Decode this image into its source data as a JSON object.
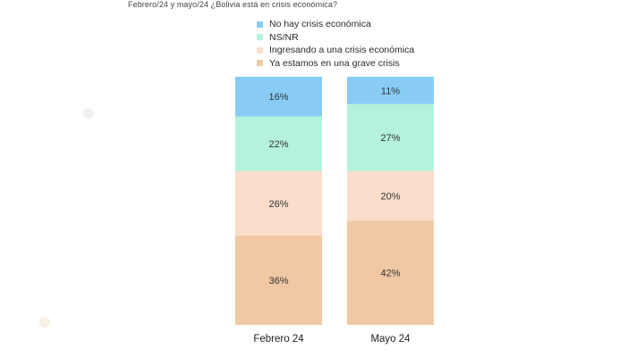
{
  "title": "Febrero/24 y mayo/24 ¿Bolivia está en crisis económica?",
  "chart_data": {
    "type": "bar",
    "stacked": true,
    "percent": true,
    "categories": [
      "Febrero 24",
      "Mayo 24"
    ],
    "series": [
      {
        "name": "Ya estamos en una grave crisis",
        "color": "#f0c8a4",
        "values": [
          36,
          42
        ],
        "labels": [
          "36%",
          "42%"
        ]
      },
      {
        "name": "Ingresando a una crisis económica",
        "color": "#f8decb",
        "values": [
          26,
          20
        ],
        "labels": [
          "26%",
          "20%"
        ]
      },
      {
        "name": "NS/NR",
        "color": "#b4f2dc",
        "values": [
          22,
          27
        ],
        "labels": [
          "22%",
          "27%"
        ]
      },
      {
        "name": "No hay crisis económica",
        "color": "#88ccf6",
        "values": [
          16,
          11
        ],
        "labels": [
          "16%",
          "11%"
        ]
      }
    ],
    "legend": {
      "position": "top",
      "order": [
        "No hay crisis económica",
        "NS/NR",
        "Ingresando a una crisis económica",
        "Ya estamos en una grave crisis"
      ]
    },
    "ylim": [
      0,
      100
    ],
    "grid": false
  }
}
